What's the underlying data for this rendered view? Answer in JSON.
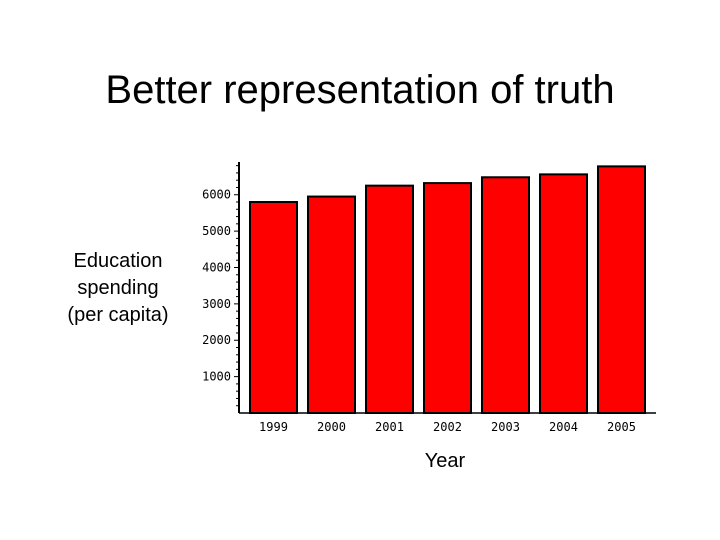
{
  "slide": {
    "title": "Better representation of truth"
  },
  "chart_data": {
    "type": "bar",
    "categories": [
      "1999",
      "2000",
      "2001",
      "2002",
      "2003",
      "2004",
      "2005"
    ],
    "values": [
      5800,
      5950,
      6250,
      6320,
      6480,
      6560,
      6780
    ],
    "xlabel": "Year",
    "ylabel_lines": [
      "Education",
      "spending",
      "(per capita)"
    ],
    "yticks": [
      1000,
      2000,
      3000,
      4000,
      5000,
      6000
    ],
    "ylim": [
      0,
      6900
    ],
    "grid": false,
    "bar_color": "#ff0000",
    "bar_outline": "#000000"
  }
}
